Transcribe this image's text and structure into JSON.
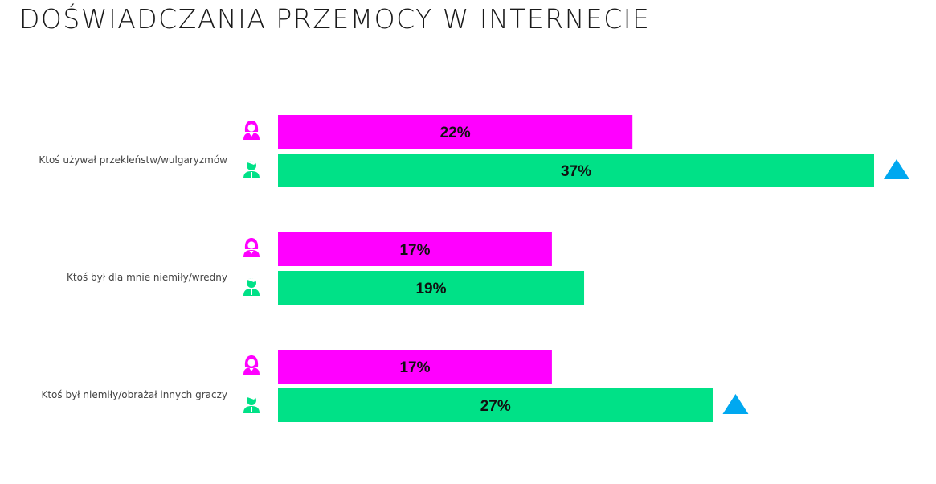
{
  "title": "DOŚWIADCZANIA PRZEMOCY W INTERNECIE",
  "chart_data": {
    "type": "bar",
    "orientation": "horizontal",
    "title": "DOŚWIADCZANIA PRZEMOCY W INTERNECIE",
    "categories": [
      "Ktoś używał przekleństw/wulgaryzmów",
      "Ktoś był dla mnie niemiły/wredny",
      "Ktoś był niemiły/obrażał innych graczy"
    ],
    "series": [
      {
        "icon": "female-person-icon",
        "color": "#ff00ff",
        "values": [
          22,
          17,
          17
        ],
        "labels": [
          "22%",
          "17%",
          "17%"
        ]
      },
      {
        "icon": "male-person-icon",
        "color": "#00e187",
        "values": [
          37,
          19,
          27
        ],
        "labels": [
          "37%",
          "19%",
          "27%"
        ],
        "significant_increase": [
          true,
          false,
          true
        ]
      }
    ],
    "significance_icon": "triangle-up-icon",
    "significance_color": "#00a8f0",
    "unit": "%",
    "xlim": [
      0,
      37
    ],
    "grid": false,
    "legend": "none"
  }
}
